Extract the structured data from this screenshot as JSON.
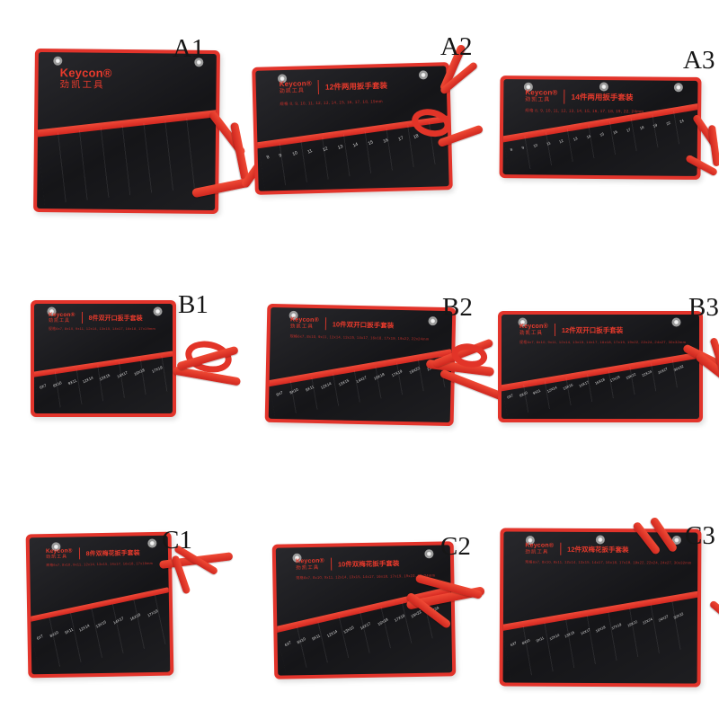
{
  "page": {
    "background": "#ffffff"
  },
  "brand": {
    "name": "Keycon®",
    "name_cn": "劲凯工具"
  },
  "colors": {
    "trim_red": "#e2342b",
    "ribbon_red": "#e23428",
    "fabric_black": "#18181b",
    "print_red": "#e83a2c",
    "pocket_text": "#d8d8d8"
  },
  "products": [
    {
      "label": "A1",
      "title": "",
      "spec": "",
      "pockets": []
    },
    {
      "label": "A2",
      "title": "12件两用扳手套装",
      "spec": "规格 8, 9, 10, 11, 12, 13, 14, 15, 16, 17, 18, 19mm",
      "pockets": [
        "8",
        "9",
        "10",
        "11",
        "12",
        "13",
        "14",
        "15",
        "16",
        "17",
        "18",
        "19"
      ]
    },
    {
      "label": "A3",
      "title": "14件两用扳手套装",
      "spec": "规格 8, 9, 10, 11, 12, 13, 14, 15, 16, 17, 18, 19, 22, 24mm",
      "pockets": [
        "8",
        "9",
        "10",
        "11",
        "12",
        "13",
        "14",
        "15",
        "16",
        "17",
        "18",
        "19",
        "22",
        "24"
      ]
    },
    {
      "label": "B1",
      "title": "8件双开口扳手套装",
      "spec": "规格6x7, 8x10, 9x11, 12x14, 13x15, 14x17, 16x18, 17x19mm",
      "pockets": [
        "6X7",
        "8X10",
        "9X11",
        "12X14",
        "13X15",
        "14X17",
        "16X18",
        "17X19"
      ]
    },
    {
      "label": "B2",
      "title": "10件双开口扳手套装",
      "spec": "规格6x7, 8x10, 9x11, 12x14, 13x15, 14x17, 16x18, 17x19, 19x22, 22x24mm",
      "pockets": [
        "6X7",
        "8X10",
        "9X11",
        "12X14",
        "13X15",
        "14X17",
        "16X18",
        "17X19",
        "19X22",
        "22X24"
      ]
    },
    {
      "label": "B3",
      "title": "12件双开口扳手套装",
      "spec": "规格6x7, 8x10, 9x11, 12x14, 13x15, 14x17, 16x18, 17x19, 19x22, 22x24, 24x27, 30x32mm",
      "pockets": [
        "6X7",
        "8X10",
        "9X11",
        "12X14",
        "13X15",
        "14X17",
        "16X18",
        "17X19",
        "19X22",
        "22X24",
        "24X27",
        "30X32"
      ]
    },
    {
      "label": "C1",
      "title": "8件双梅花扳手套装",
      "spec": "规格6x7, 8x10, 9x11, 12x14, 13x15, 14x17, 16x18, 17x19mm",
      "pockets": [
        "6X7",
        "8X10",
        "9X11",
        "12X14",
        "13X15",
        "14X17",
        "16X18",
        "17X19"
      ]
    },
    {
      "label": "C2",
      "title": "10件双梅花扳手套装",
      "spec": "规格6x7, 8x10, 9x11, 12x14, 13x15, 14x17, 16x18, 17x19, 19x22, 22x24mm",
      "pockets": [
        "6X7",
        "8X10",
        "9X11",
        "12X14",
        "13X15",
        "14X17",
        "16X18",
        "17X19",
        "19X22",
        "22X24"
      ]
    },
    {
      "label": "C3",
      "title": "12件双梅花扳手套装",
      "spec": "规格6x7, 8x10, 9x11, 12x14, 13x15, 14x17, 16x18, 17x19, 19x22, 22x24, 24x27, 30x32mm",
      "pockets": [
        "6X7",
        "8X10",
        "9X11",
        "12X14",
        "13X15",
        "14X17",
        "16X18",
        "17X19",
        "19X22",
        "22X24",
        "24X27",
        "30X32"
      ]
    }
  ]
}
